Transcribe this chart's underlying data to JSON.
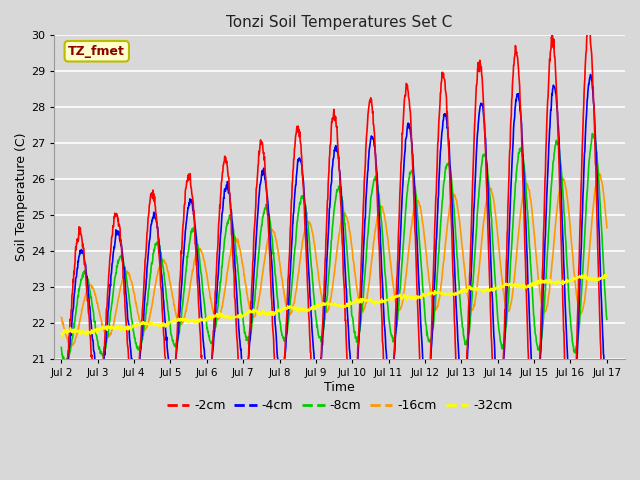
{
  "title": "Tonzi Soil Temperatures Set C",
  "xlabel": "Time",
  "ylabel": "Soil Temperature (C)",
  "ylim": [
    21.0,
    30.0
  ],
  "yticks": [
    21.0,
    22.0,
    23.0,
    24.0,
    25.0,
    26.0,
    27.0,
    28.0,
    29.0,
    30.0
  ],
  "annotation_text": "TZ_fmet",
  "annotation_bg": "#ffffcc",
  "annotation_border": "#bbbb00",
  "line_colors": {
    "-2cm": "#ff0000",
    "-4cm": "#0000ff",
    "-8cm": "#00cc00",
    "-16cm": "#ff9900",
    "-32cm": "#ffff00"
  },
  "fig_bg": "#d8d8d8",
  "plot_bg": "#d8d8d8",
  "n_days": 15,
  "start_day": 2,
  "samples_per_day": 96,
  "legend_labels": [
    "-2cm",
    "-4cm",
    "-8cm",
    "-16cm",
    "-32cm"
  ]
}
